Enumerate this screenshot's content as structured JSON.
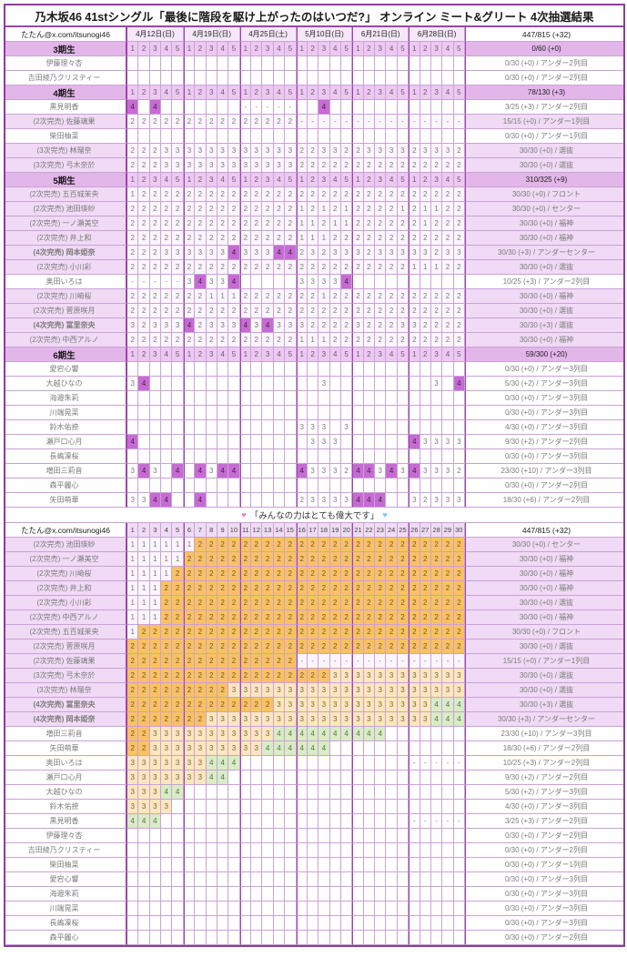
{
  "title": "乃木坂46 41stシングル「最後に階段を駆け上がったのはいつだ?」 オンライン ミート&グリート 4次抽選結果",
  "handle": "たたん@x.com/itsunogi46",
  "grand_total": "447/815 (+32)",
  "dates": [
    "4月12日(日)",
    "4月19日(日)",
    "4月25日(土)",
    "5月10日(日)",
    "6月21日(日)",
    "6月28日(日)"
  ],
  "slot_numbers": [
    "1",
    "2",
    "3",
    "4",
    "5"
  ],
  "t2_columns": [
    "1",
    "2",
    "3",
    "4",
    "5",
    "6",
    "7",
    "8",
    "9",
    "10",
    "11",
    "12",
    "13",
    "14",
    "15",
    "16",
    "17",
    "18",
    "19",
    "20",
    "21",
    "22",
    "23",
    "24",
    "25",
    "26",
    "27",
    "28",
    "29",
    "30"
  ],
  "banner": {
    "heart_left": "♥",
    "text": "「みんなの力はとても偉大です」",
    "heart_right": "♥"
  },
  "colors": {
    "grid": "#C9A2D6",
    "grid_major": "#9C44AC",
    "section_row": "#E3B6EA",
    "soldout_row": "#F0DAF5",
    "win4_purple": "#C76BD4",
    "round2_orange": "#F9C162",
    "round3_cream": "#FBE6BD",
    "round4_green": "#D8ECC5",
    "heart_pink": "#F37FB0",
    "heart_blue": "#74C9F2"
  },
  "table1_sections": [
    {
      "label": "3期生",
      "total": "0/60 (+0)",
      "members": [
        {
          "prefix": "",
          "bold": false,
          "name": "伊藤理々杏",
          "cells": "..............................",
          "result": "0/30 (+0) / アンダー2列目"
        },
        {
          "prefix": "",
          "bold": false,
          "name": "吉田綾乃クリスティー",
          "cells": "..............................",
          "result": "0/30 (+0) / アンダー2列目"
        }
      ]
    },
    {
      "label": "4期生",
      "total": "78/130 (+3)",
      "members": [
        {
          "prefix": "",
          "bold": false,
          "name": "黒見明香",
          "cells": "4.4.......-----..4............",
          "result": "3/25 (+3) / アンダー2列目"
        },
        {
          "prefix": "(2次完売)",
          "bold": false,
          "name": "佐藤璃果",
          "cells": "222222222222222---------------",
          "result": "15/15 (+0) / アンダー1列目"
        },
        {
          "prefix": "",
          "bold": false,
          "name": "柴田柚菜",
          "cells": "..............................",
          "result": "0/30 (+0) / アンダー1列目"
        },
        {
          "prefix": "(3次完売)",
          "bold": false,
          "name": "林瑠奈",
          "cells": "222333333333333223322333323332",
          "result": "30/30 (+0) / 選抜"
        },
        {
          "prefix": "(3次完売)",
          "bold": false,
          "name": "弓木奈於",
          "cells": "222333333333333222222222222222",
          "result": "30/30 (+0) / 選抜"
        }
      ]
    },
    {
      "label": "5期生",
      "total": "310/325 (+9)",
      "members": [
        {
          "prefix": "(2次完売)",
          "bold": false,
          "name": "五百城茉央",
          "cells": "122222222222222222222222222222",
          "result": "30/30 (+0) / フロント"
        },
        {
          "prefix": "(2次完売)",
          "bold": false,
          "name": "池田瑛紗",
          "cells": "222222222222222121212222121122",
          "result": "30/30 (+0) / センター"
        },
        {
          "prefix": "(2次完売)",
          "bold": false,
          "name": "一ノ瀬美空",
          "cells": "222222222222222112112222221222",
          "result": "30/30 (+0) / 福神"
        },
        {
          "prefix": "(2次完売)",
          "bold": false,
          "name": "井上和",
          "cells": "222222222222222111222222222222",
          "result": "30/30 (+0) / 福神"
        },
        {
          "prefix": "(4次完売)",
          "bold": true,
          "name": "岡本姫奈",
          "cells": "222333333433344232333233333233",
          "result": "30/30 (+3) / アンダーセンター"
        },
        {
          "prefix": "(2次完売)",
          "bold": false,
          "name": "小川彩",
          "cells": "222222222222222222222222211122",
          "result": "30/30 (+0) / 選抜"
        },
        {
          "prefix": "",
          "bold": false,
          "name": "奥田いろは",
          "cells": "-----34334.....33334..........",
          "result": "10/25 (+3) / アンダー2列目"
        },
        {
          "prefix": "(2次完売)",
          "bold": false,
          "name": "川﨑桜",
          "cells": "222222211122222221222222222222",
          "result": "30/30 (+0) / 福神"
        },
        {
          "prefix": "(2次完売)",
          "bold": false,
          "name": "菅原咲月",
          "cells": "222222222222222222222222222222",
          "result": "30/30 (+0) / 選抜"
        },
        {
          "prefix": "(4次完売)",
          "bold": true,
          "name": "冨里奈央",
          "cells": "323334233343433322223222332222",
          "result": "30/30 (+3) / 選抜"
        },
        {
          "prefix": "(2次完売)",
          "bold": false,
          "name": "中西アルノ",
          "cells": "222222222222222111222222222222",
          "result": "30/30 (+0) / 福神"
        }
      ]
    },
    {
      "label": "6期生",
      "total": "59/300 (+20)",
      "members": [
        {
          "prefix": "",
          "bold": false,
          "name": "愛宕心響",
          "cells": "..............................",
          "result": "0/30 (+0) / アンダー3列目"
        },
        {
          "prefix": "",
          "bold": false,
          "name": "大越ひなの",
          "cells": "34...............3.........3.4",
          "result": "5/30 (+2) / アンダー3列目"
        },
        {
          "prefix": "",
          "bold": false,
          "name": "海邉朱莉",
          "cells": "..............................",
          "result": "0/30 (+0) / アンダー3列目"
        },
        {
          "prefix": "",
          "bold": false,
          "name": "川端晃菜",
          "cells": "..............................",
          "result": "0/30 (+0) / アンダー3列目"
        },
        {
          "prefix": "",
          "bold": false,
          "name": "鈴木佑捺",
          "cells": "...............333.3..........",
          "result": "4/30 (+0) / アンダー3列目"
        },
        {
          "prefix": "",
          "bold": false,
          "name": "瀬戸口心月",
          "cells": "4...............333......43333",
          "result": "9/30 (+2) / アンダー2列目"
        },
        {
          "prefix": "",
          "bold": false,
          "name": "長嶋凜桜",
          "cells": "..............................",
          "result": "0/30 (+0) / アンダー3列目"
        },
        {
          "prefix": "",
          "bold": false,
          "name": "増田三莉音",
          "cells": "343.4.4344.....433324434343332",
          "result": "23/30 (+10) / アンダー3列目"
        },
        {
          "prefix": "",
          "bold": false,
          "name": "森平麗心",
          "cells": "..............................",
          "result": "0/30 (+0) / アンダー2列目"
        },
        {
          "prefix": "",
          "bold": false,
          "name": "矢田萌華",
          "cells": "3344..4........23333444..32333",
          "result": "18/30 (+6) / アンダー2列目"
        }
      ]
    }
  ],
  "table2_rows": [
    {
      "prefix": "(2次完売)",
      "bold": false,
      "name": "池田瑛紗",
      "cells": "111111222222222222222222222222",
      "result": "30/30 (+0) / センター"
    },
    {
      "prefix": "(2次完売)",
      "bold": false,
      "name": "一ノ瀬美空",
      "cells": "111112222222222222222222222222",
      "result": "30/30 (+0) / 福神"
    },
    {
      "prefix": "(2次完売)",
      "bold": false,
      "name": "川﨑桜",
      "cells": "111122222222222222222222222222",
      "result": "30/30 (+0) / 福神"
    },
    {
      "prefix": "(2次完売)",
      "bold": false,
      "name": "井上和",
      "cells": "111222222222222222222222222222",
      "result": "30/30 (+0) / 福神"
    },
    {
      "prefix": "(2次完売)",
      "bold": false,
      "name": "小川彩",
      "cells": "111222222222222222222222222222",
      "result": "30/30 (+0) / 選抜"
    },
    {
      "prefix": "(2次完売)",
      "bold": false,
      "name": "中西アルノ",
      "cells": "111222222222222222222222222222",
      "result": "30/30 (+0) / 福神"
    },
    {
      "prefix": "(2次完売)",
      "bold": false,
      "name": "五百城茉央",
      "cells": "122222222222222222222222222222",
      "result": "30/30 (+0) / フロント"
    },
    {
      "prefix": "(2次完売)",
      "bold": false,
      "name": "菅原咲月",
      "cells": "222222222222222222222222222222",
      "result": "30/30 (+0) / 選抜"
    },
    {
      "prefix": "(2次完売)",
      "bold": false,
      "name": "佐藤璃果",
      "cells": "222222222222222---------------",
      "result": "15/15 (+0) / アンダー1列目"
    },
    {
      "prefix": "(3次完売)",
      "bold": false,
      "name": "弓木奈於",
      "cells": "222222222222222222333333333333",
      "result": "30/30 (+0) / 選抜"
    },
    {
      "prefix": "(3次完売)",
      "bold": false,
      "name": "林瑠奈",
      "cells": "222222222333333333333333333333",
      "result": "30/30 (+0) / 選抜"
    },
    {
      "prefix": "(4次完売)",
      "bold": true,
      "name": "冨里奈央",
      "cells": "222222222222233333333333333444",
      "result": "30/30 (+3) / 選抜"
    },
    {
      "prefix": "(4次完売)",
      "bold": true,
      "name": "岡本姫奈",
      "cells": "222222233333333333333333333444",
      "result": "30/30 (+3) / アンダーセンター"
    },
    {
      "prefix": "",
      "bold": false,
      "name": "増田三莉音",
      "cells": "22333333333334444444444.......",
      "result": "23/30 (+10) / アンダー3列目"
    },
    {
      "prefix": "",
      "bold": false,
      "name": "矢田萌華",
      "cells": "223333333333444444............",
      "result": "18/30 (+6) / アンダー2列目"
    },
    {
      "prefix": "",
      "bold": false,
      "name": "奥田いろは",
      "cells": "3333333444...............-----",
      "result": "10/25 (+3) / アンダー2列目"
    },
    {
      "prefix": "",
      "bold": false,
      "name": "瀬戸口心月",
      "cells": "333333344.....................",
      "result": "9/30 (+2) / アンダー2列目"
    },
    {
      "prefix": "",
      "bold": false,
      "name": "大越ひなの",
      "cells": "33344.........................",
      "result": "5/30 (+2) / アンダー3列目"
    },
    {
      "prefix": "",
      "bold": false,
      "name": "鈴木佑捺",
      "cells": "3333..........................",
      "result": "4/30 (+0) / アンダー3列目"
    },
    {
      "prefix": "",
      "bold": false,
      "name": "黒見明香",
      "cells": "444......................-----",
      "result": "3/25 (+3) / アンダー2列目"
    },
    {
      "prefix": "",
      "bold": false,
      "name": "伊藤理々杏",
      "cells": "..............................",
      "result": "0/30 (+0) / アンダー2列目"
    },
    {
      "prefix": "",
      "bold": false,
      "name": "吉田綾乃クリスティー",
      "cells": "..............................",
      "result": "0/30 (+0) / アンダー2列目"
    },
    {
      "prefix": "",
      "bold": false,
      "name": "柴田柚菜",
      "cells": "..............................",
      "result": "0/30 (+0) / アンダー1列目"
    },
    {
      "prefix": "",
      "bold": false,
      "name": "愛宕心響",
      "cells": "..............................",
      "result": "0/30 (+0) / アンダー3列目"
    },
    {
      "prefix": "",
      "bold": false,
      "name": "海邉朱莉",
      "cells": "..............................",
      "result": "0/30 (+0) / アンダー3列目"
    },
    {
      "prefix": "",
      "bold": false,
      "name": "川端晃菜",
      "cells": "..............................",
      "result": "0/30 (+0) / アンダー3列目"
    },
    {
      "prefix": "",
      "bold": false,
      "name": "長嶋凜桜",
      "cells": "..............................",
      "result": "0/30 (+0) / アンダー3列目"
    },
    {
      "prefix": "",
      "bold": false,
      "name": "森平麗心",
      "cells": "..............................",
      "result": "0/30 (+0) / アンダー2列目"
    }
  ]
}
